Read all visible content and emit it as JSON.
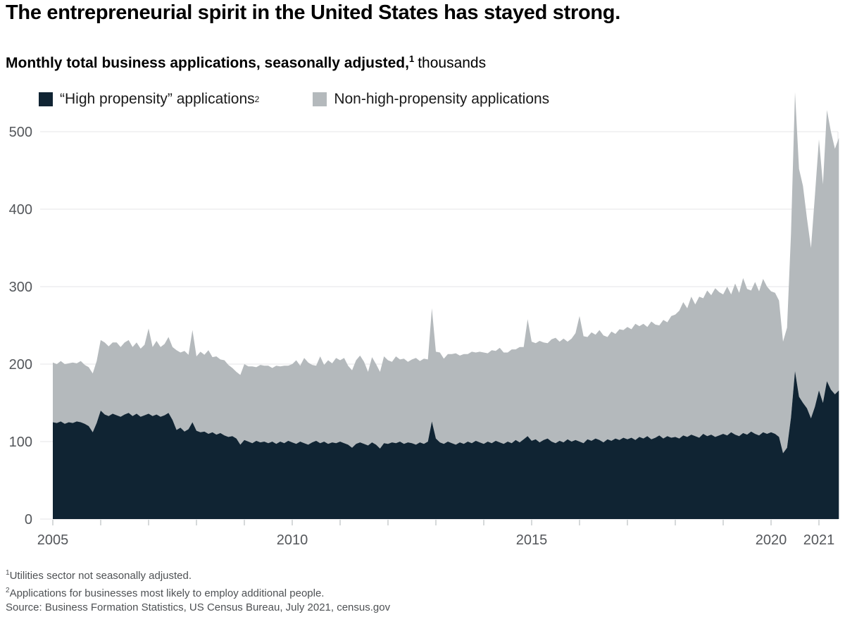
{
  "header": {
    "title": "The entrepreneurial spirit in the United States has stayed strong.",
    "subtitle_bold": "Monthly total business applications, seasonally adjusted,",
    "subtitle_sup": "1",
    "subtitle_unit": "thousands"
  },
  "legend": {
    "items": [
      {
        "label": "“High propensity” applications",
        "sup": "2",
        "series": "high_propensity"
      },
      {
        "label": "Non-high-propensity applications",
        "sup": "",
        "series": "non_high_propensity"
      }
    ]
  },
  "footnotes": [
    {
      "sup": "1",
      "text": "Utilities sector not seasonally adjusted."
    },
    {
      "sup": "2",
      "text": "Applications for businesses most likely to employ additional people."
    },
    {
      "sup": "",
      "text": "Source: Business Formation Statistics, US Census Bureau, July 2021, census.gov"
    }
  ],
  "chart_data": {
    "type": "area",
    "stacked": true,
    "title": "Monthly total business applications, seasonally adjusted, thousands",
    "unit": "thousands",
    "x_start": "2005-01",
    "x_end": "2021-06",
    "points_per_year": 12,
    "ylim": [
      0,
      560
    ],
    "grid": true,
    "legend_position": "top",
    "y_ticks": [
      0,
      100,
      200,
      300,
      400,
      500
    ],
    "x_tick_years": [
      2005,
      2006,
      2007,
      2008,
      2009,
      2010,
      2011,
      2012,
      2013,
      2014,
      2015,
      2016,
      2017,
      2018,
      2019,
      2020,
      2021
    ],
    "x_tick_labels": [
      {
        "label": "2005",
        "year": 2005
      },
      {
        "label": "2010",
        "year": 2010
      },
      {
        "label": "2015",
        "year": 2015
      },
      {
        "label": "2020",
        "year": 2020
      },
      {
        "label": "2021",
        "year": 2021
      }
    ],
    "colors": {
      "high_propensity": "#102433",
      "non_high_propensity": "#b4b9bc",
      "grid": "#e4e6e7",
      "tick": "#c9ccce",
      "axis_text": "#54575b"
    },
    "series": [
      {
        "name": "“High propensity” applications",
        "color": "#102433",
        "values": [
          125,
          124,
          126,
          123,
          125,
          124,
          126,
          125,
          123,
          120,
          112,
          124,
          140,
          135,
          133,
          136,
          134,
          132,
          135,
          137,
          133,
          136,
          132,
          134,
          136,
          133,
          135,
          132,
          134,
          137,
          128,
          115,
          118,
          113,
          116,
          125,
          114,
          112,
          113,
          110,
          112,
          109,
          111,
          108,
          106,
          107,
          104,
          96,
          102,
          100,
          98,
          101,
          99,
          100,
          98,
          100,
          97,
          100,
          98,
          101,
          99,
          97,
          100,
          98,
          96,
          99,
          101,
          98,
          100,
          97,
          99,
          98,
          100,
          98,
          96,
          92,
          97,
          99,
          97,
          95,
          99,
          96,
          91,
          98,
          97,
          99,
          98,
          100,
          97,
          99,
          98,
          96,
          99,
          97,
          100,
          126,
          104,
          99,
          97,
          100,
          98,
          96,
          99,
          97,
          100,
          98,
          101,
          99,
          97,
          100,
          98,
          101,
          99,
          97,
          100,
          98,
          102,
          99,
          103,
          107,
          101,
          103,
          99,
          102,
          104,
          100,
          98,
          101,
          99,
          103,
          100,
          102,
          100,
          98,
          103,
          101,
          104,
          102,
          99,
          103,
          101,
          104,
          102,
          105,
          103,
          105,
          102,
          106,
          104,
          107,
          103,
          105,
          108,
          104,
          107,
          105,
          106,
          104,
          108,
          106,
          109,
          107,
          105,
          110,
          107,
          109,
          106,
          108,
          110,
          108,
          112,
          109,
          107,
          111,
          109,
          113,
          110,
          108,
          112,
          110,
          112,
          110,
          106,
          85,
          92,
          131,
          191,
          158,
          150,
          143,
          130,
          145,
          166,
          150,
          178,
          167,
          161,
          166
        ]
      },
      {
        "name": "Non-high-propensity applications",
        "color": "#b4b9bc",
        "values": [
          77,
          76,
          78,
          77,
          76,
          78,
          75,
          79,
          76,
          76,
          76,
          80,
          91,
          93,
          90,
          92,
          94,
          90,
          93,
          94,
          89,
          92,
          88,
          91,
          110,
          89,
          95,
          90,
          92,
          98,
          94,
          103,
          97,
          104,
          96,
          119,
          96,
          104,
          99,
          108,
          97,
          101,
          95,
          97,
          93,
          88,
          86,
          90,
          98,
          97,
          99,
          95,
          100,
          98,
          100,
          95,
          101,
          97,
          100,
          97,
          101,
          108,
          98,
          110,
          106,
          100,
          97,
          112,
          99,
          108,
          102,
          110,
          105,
          110,
          102,
          100,
          108,
          112,
          106,
          95,
          110,
          104,
          99,
          112,
          108,
          104,
          112,
          106,
          110,
          104,
          108,
          112,
          105,
          110,
          106,
          146,
          112,
          116,
          110,
          113,
          115,
          118,
          112,
          116,
          113,
          118,
          114,
          117,
          118,
          114,
          120,
          116,
          122,
          118,
          115,
          121,
          117,
          123,
          119,
          151,
          128,
          124,
          131,
          126,
          123,
          132,
          136,
          128,
          134,
          126,
          133,
          138,
          162,
          138,
          132,
          140,
          134,
          142,
          138,
          132,
          141,
          135,
          143,
          139,
          145,
          140,
          150,
          143,
          148,
          141,
          152,
          146,
          142,
          153,
          147,
          157,
          158,
          165,
          172,
          166,
          178,
          170,
          182,
          175,
          188,
          180,
          192,
          185,
          180,
          192,
          178,
          195,
          185,
          200,
          188,
          182,
          196,
          186,
          198,
          190,
          182,
          182,
          176,
          144,
          155,
          237,
          360,
          294,
          280,
          245,
          220,
          273,
          324,
          282,
          350,
          333,
          317,
          326
        ]
      }
    ]
  }
}
